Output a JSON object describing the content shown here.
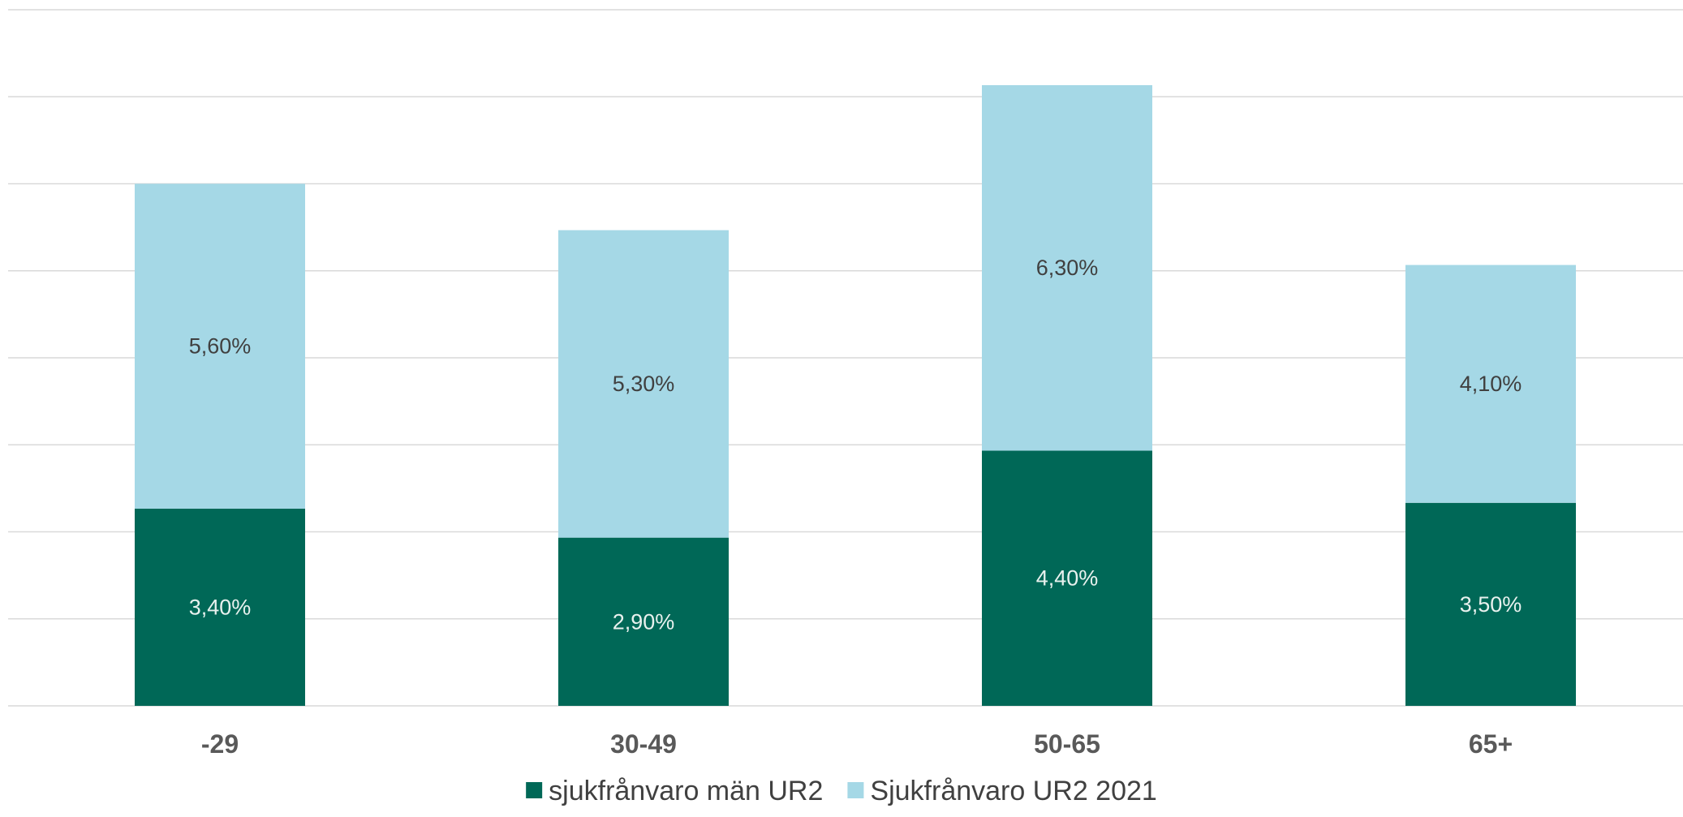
{
  "chart_data": {
    "type": "bar",
    "stacked": true,
    "categories": [
      "-29",
      "30-49",
      "50-65",
      "65+"
    ],
    "series": [
      {
        "name": "sjukfrånvaro män UR2",
        "values": [
          3.4,
          2.9,
          4.4,
          3.5
        ],
        "labels": [
          "3,40%",
          "2,90%",
          "4,40%",
          "3,50%"
        ],
        "color": "#006857",
        "label_color": "#e8f1ee"
      },
      {
        "name": "Sjukfrånvaro UR2 2021",
        "values": [
          5.6,
          5.3,
          6.3,
          4.1
        ],
        "labels": [
          "5,60%",
          "5,30%",
          "6,30%",
          "4,10%"
        ],
        "color": "#a5d8e6",
        "label_color": "#404040"
      }
    ],
    "ylim": [
      0,
      12
    ],
    "grid": true,
    "legend_position": "bottom",
    "axis_line_color": "#d9d9d9"
  }
}
